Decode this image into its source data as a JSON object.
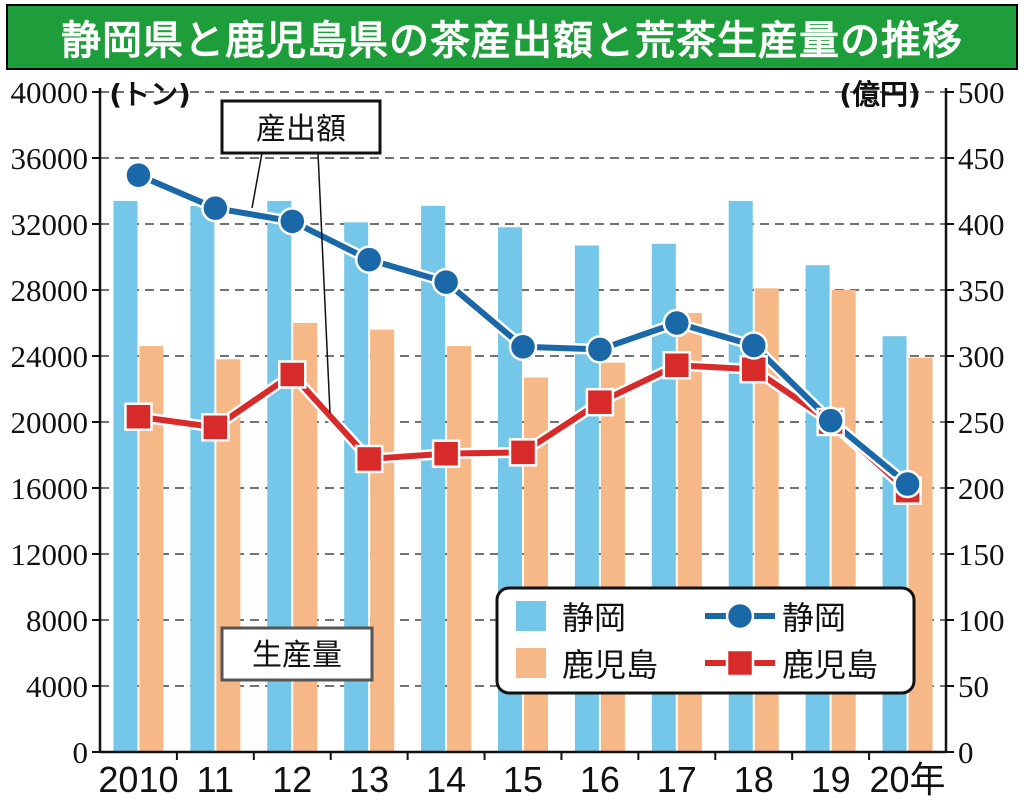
{
  "title": "静岡県と鹿児島県の茶産出額と荒茶生産量の推移",
  "colors": {
    "title_bg": "#1e9e3a",
    "shizuoka_bar": "#74c7e8",
    "kagoshima_bar": "#f5b886",
    "shizuoka_line": "#1a68a8",
    "kagoshima_line": "#d92a2a"
  },
  "chart_data": {
    "type": "bar+line",
    "categories": [
      "2010",
      "11",
      "12",
      "13",
      "14",
      "15",
      "16",
      "17",
      "18",
      "19",
      "20年"
    ],
    "left_axis": {
      "unit": "(トン)",
      "range": [
        0,
        40000
      ],
      "ticks": [
        "0",
        "4000",
        "8000",
        "12000",
        "16000",
        "20000",
        "24000",
        "28000",
        "32000",
        "36000",
        "40000"
      ]
    },
    "right_axis": {
      "unit": "(億円)",
      "range": [
        0,
        500
      ],
      "ticks": [
        "0",
        "50",
        "100",
        "150",
        "200",
        "250",
        "300",
        "350",
        "400",
        "450",
        "500"
      ]
    },
    "grid": "dashed horizontal",
    "legend_placement": "bottom-right",
    "bar_series": [
      {
        "name": "静岡",
        "axis": "left",
        "values": [
          33400,
          33100,
          33400,
          32100,
          33100,
          31800,
          30700,
          30800,
          33400,
          29500,
          25200
        ]
      },
      {
        "name": "鹿児島",
        "axis": "left",
        "values": [
          24600,
          23800,
          26000,
          25600,
          24600,
          22700,
          23600,
          26600,
          28100,
          28000,
          23900
        ]
      }
    ],
    "line_series": [
      {
        "name": "静岡",
        "axis": "right",
        "marker": "circle",
        "values": [
          437,
          412,
          402,
          373,
          356,
          307,
          305,
          325,
          308,
          251,
          203
        ]
      },
      {
        "name": "鹿児島",
        "axis": "right",
        "marker": "square",
        "values": [
          254,
          246,
          286,
          222,
          226,
          227,
          265,
          293,
          290,
          250,
          198
        ]
      }
    ],
    "annotations": [
      {
        "text": "産出額",
        "points_to": "line_series"
      },
      {
        "text": "生産量",
        "points_to": "bar_series"
      }
    ]
  }
}
